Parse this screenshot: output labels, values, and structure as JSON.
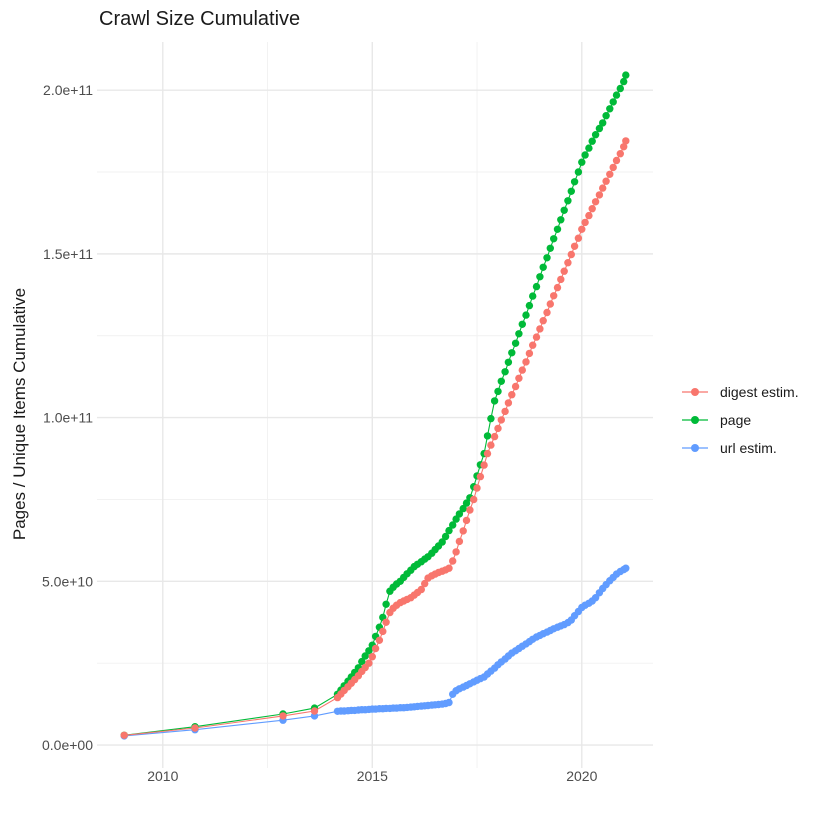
{
  "title": "Crawl Size Cumulative",
  "legend": {
    "items": [
      {
        "label": "digest estim.",
        "color": "#F8766D"
      },
      {
        "label": "page",
        "color": "#00BA38"
      },
      {
        "label": "url estim.",
        "color": "#619CFF"
      }
    ]
  },
  "chart_data": {
    "type": "line",
    "title": "Crawl Size Cumulative",
    "xlabel": "",
    "ylabel": "Pages / Unique Items Cumulative",
    "value_unit": "1e10",
    "grid": true,
    "legend_position": "right",
    "x_range": [
      2008.43,
      2021.7
    ],
    "y_range_e10": [
      -0.7,
      21.47
    ],
    "x_ticks": {
      "major": [
        2010,
        2015,
        2020
      ],
      "labels": [
        "2010",
        "2015",
        "2020"
      ],
      "minor": [
        2012.5,
        2017.5
      ]
    },
    "y_ticks": {
      "major_e10": [
        0,
        5,
        10,
        15,
        20
      ],
      "labels": [
        "0.0e+00",
        "5.0e+10",
        "1.0e+11",
        "1.5e+11",
        "2.0e+11"
      ],
      "minor_e10": [
        2.5,
        7.5,
        12.5,
        17.5
      ]
    },
    "x_years": [
      2009.08,
      2010.77,
      2012.87,
      2013.62,
      2014.17,
      2014.25,
      2014.33,
      2014.42,
      2014.5,
      2014.58,
      2014.67,
      2014.75,
      2014.83,
      2014.92,
      2015.0,
      2015.08,
      2015.17,
      2015.25,
      2015.33,
      2015.42,
      2015.5,
      2015.58,
      2015.67,
      2015.75,
      2015.83,
      2015.92,
      2016.0,
      2016.08,
      2016.17,
      2016.25,
      2016.33,
      2016.42,
      2016.5,
      2016.58,
      2016.67,
      2016.75,
      2016.83,
      2016.92,
      2017.0,
      2017.08,
      2017.17,
      2017.25,
      2017.33,
      2017.42,
      2017.5,
      2017.58,
      2017.67,
      2017.75,
      2017.83,
      2017.92,
      2018.0,
      2018.08,
      2018.17,
      2018.25,
      2018.33,
      2018.42,
      2018.5,
      2018.58,
      2018.67,
      2018.75,
      2018.83,
      2018.92,
      2019.0,
      2019.08,
      2019.17,
      2019.25,
      2019.33,
      2019.42,
      2019.5,
      2019.58,
      2019.67,
      2019.75,
      2019.83,
      2019.92,
      2020.0,
      2020.08,
      2020.17,
      2020.25,
      2020.33,
      2020.42,
      2020.5,
      2020.58,
      2020.67,
      2020.75,
      2020.83,
      2020.92,
      2021.0,
      2021.05
    ],
    "series": [
      {
        "name": "digest estim.",
        "color": "#F8766D",
        "values_e10": [
          0.3,
          0.52,
          0.89,
          1.04,
          1.45,
          1.56,
          1.67,
          1.78,
          1.89,
          2.0,
          2.12,
          2.25,
          2.37,
          2.5,
          2.7,
          2.95,
          3.2,
          3.47,
          3.75,
          4.05,
          4.18,
          4.27,
          4.35,
          4.4,
          4.45,
          4.5,
          4.58,
          4.66,
          4.75,
          4.93,
          5.1,
          5.17,
          5.22,
          5.27,
          5.31,
          5.35,
          5.4,
          5.62,
          5.9,
          6.22,
          6.54,
          6.86,
          7.18,
          7.5,
          7.85,
          8.2,
          8.55,
          8.9,
          9.16,
          9.42,
          9.67,
          9.93,
          10.19,
          10.45,
          10.7,
          10.95,
          11.2,
          11.45,
          11.7,
          11.96,
          12.21,
          12.46,
          12.71,
          12.96,
          13.21,
          13.47,
          13.72,
          13.97,
          14.22,
          14.47,
          14.73,
          14.98,
          15.23,
          15.48,
          15.75,
          15.96,
          16.17,
          16.38,
          16.59,
          16.8,
          17.01,
          17.22,
          17.43,
          17.64,
          17.85,
          18.06,
          18.27,
          18.45
        ]
      },
      {
        "name": "page",
        "color": "#00BA38",
        "values_e10": [
          0.3,
          0.56,
          0.95,
          1.13,
          1.55,
          1.68,
          1.81,
          1.95,
          2.08,
          2.22,
          2.36,
          2.55,
          2.72,
          2.88,
          3.05,
          3.32,
          3.6,
          3.9,
          4.3,
          4.7,
          4.82,
          4.92,
          5.0,
          5.12,
          5.23,
          5.34,
          5.45,
          5.52,
          5.6,
          5.68,
          5.75,
          5.86,
          5.97,
          6.08,
          6.2,
          6.37,
          6.55,
          6.72,
          6.9,
          7.06,
          7.22,
          7.39,
          7.55,
          7.89,
          8.22,
          8.56,
          8.9,
          9.44,
          9.97,
          10.51,
          10.8,
          11.11,
          11.4,
          11.69,
          11.98,
          12.27,
          12.56,
          12.85,
          13.13,
          13.42,
          13.71,
          14.0,
          14.3,
          14.59,
          14.88,
          15.17,
          15.46,
          15.75,
          16.04,
          16.33,
          16.62,
          16.91,
          17.2,
          17.5,
          17.8,
          18.02,
          18.23,
          18.44,
          18.64,
          18.83,
          19.0,
          19.22,
          19.43,
          19.64,
          19.85,
          20.05,
          20.26,
          20.46
        ]
      },
      {
        "name": "url estim.",
        "color": "#619CFF",
        "values_e10": [
          0.28,
          0.47,
          0.76,
          0.89,
          1.03,
          1.04,
          1.04,
          1.05,
          1.06,
          1.06,
          1.07,
          1.08,
          1.08,
          1.09,
          1.1,
          1.1,
          1.11,
          1.11,
          1.12,
          1.12,
          1.13,
          1.13,
          1.14,
          1.14,
          1.15,
          1.16,
          1.17,
          1.18,
          1.19,
          1.2,
          1.21,
          1.22,
          1.23,
          1.24,
          1.25,
          1.27,
          1.3,
          1.55,
          1.66,
          1.72,
          1.77,
          1.82,
          1.87,
          1.93,
          1.98,
          2.03,
          2.08,
          2.17,
          2.26,
          2.35,
          2.45,
          2.54,
          2.63,
          2.72,
          2.81,
          2.88,
          2.95,
          3.02,
          3.09,
          3.16,
          3.23,
          3.3,
          3.35,
          3.4,
          3.45,
          3.5,
          3.55,
          3.6,
          3.64,
          3.68,
          3.74,
          3.82,
          3.95,
          4.08,
          4.2,
          4.27,
          4.33,
          4.4,
          4.5,
          4.65,
          4.78,
          4.9,
          5.02,
          5.12,
          5.22,
          5.3,
          5.36,
          5.4
        ]
      }
    ],
    "draw_order": [
      "page",
      "url estim.",
      "digest estim."
    ]
  }
}
